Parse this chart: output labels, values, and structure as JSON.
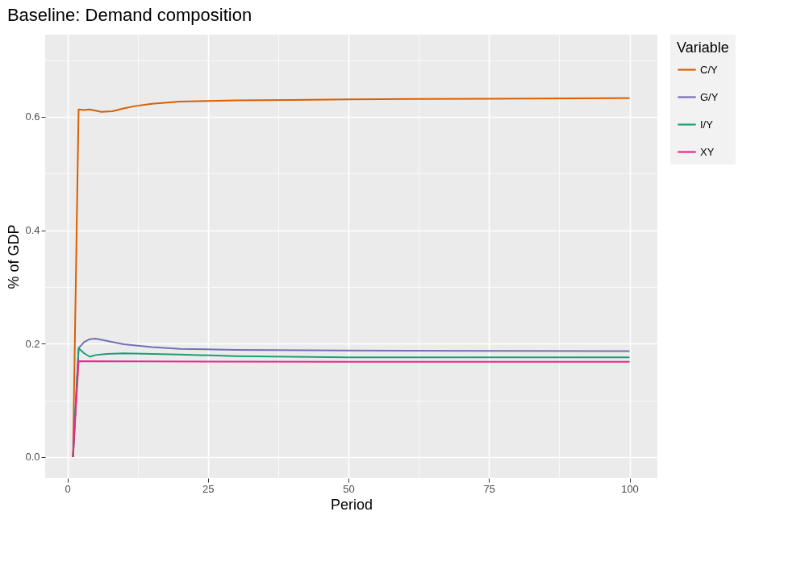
{
  "chart_data": {
    "type": "line",
    "title": "Baseline: Demand composition",
    "xlabel": "Period",
    "ylabel": "% of GDP",
    "legend_title": "Variable",
    "legend": "right",
    "grid": true,
    "line_style": "solid",
    "marker": "none",
    "xlim": [
      -3.95,
      104.95
    ],
    "ylim": [
      -0.037,
      0.745
    ],
    "xticks": [
      0,
      {
        "value": 12.5,
        "label": null
      },
      25,
      {
        "value": 37.5,
        "label": null
      },
      50,
      {
        "value": 62.5,
        "label": null
      },
      75,
      {
        "value": 87.5,
        "label": null
      },
      100
    ],
    "yticks": [
      {
        "value": 0,
        "label": "0.0"
      },
      {
        "value": 0.1,
        "label": null
      },
      {
        "value": 0.2,
        "label": "0.2"
      },
      {
        "value": 0.3,
        "label": null
      },
      {
        "value": 0.4,
        "label": "0.4"
      },
      {
        "value": 0.5,
        "label": null
      },
      {
        "value": 0.6,
        "label": "0.6"
      },
      {
        "value": 0.7,
        "label": null
      }
    ],
    "series": [
      {
        "name": "C/Y",
        "color": "#d95f02",
        "x": [
          1,
          2,
          3,
          4,
          5,
          6,
          8,
          10,
          12,
          15,
          20,
          25,
          30,
          40,
          50,
          75,
          100
        ],
        "values": [
          0,
          0.613,
          0.612,
          0.613,
          0.611,
          0.609,
          0.61,
          0.615,
          0.619,
          0.623,
          0.627,
          0.628,
          0.629,
          0.63,
          0.631,
          0.632,
          0.633
        ]
      },
      {
        "name": "G/Y",
        "color": "#7570b3",
        "x": [
          1,
          2,
          3,
          4,
          5,
          7,
          10,
          15,
          20,
          30,
          50,
          100
        ],
        "values": [
          0,
          0.192,
          0.203,
          0.208,
          0.209,
          0.205,
          0.199,
          0.194,
          0.191,
          0.189,
          0.188,
          0.187
        ]
      },
      {
        "name": "I/Y",
        "color": "#1b9e77",
        "x": [
          1,
          2,
          3,
          4,
          5,
          7,
          10,
          20,
          30,
          50,
          100
        ],
        "values": [
          0,
          0.192,
          0.183,
          0.177,
          0.18,
          0.182,
          0.183,
          0.181,
          0.178,
          0.176,
          0.176
        ]
      },
      {
        "name": "XY",
        "color": "#e7298a",
        "x": [
          1,
          2,
          50,
          100
        ],
        "values": [
          0,
          0.169,
          0.168,
          0.168
        ]
      }
    ]
  }
}
